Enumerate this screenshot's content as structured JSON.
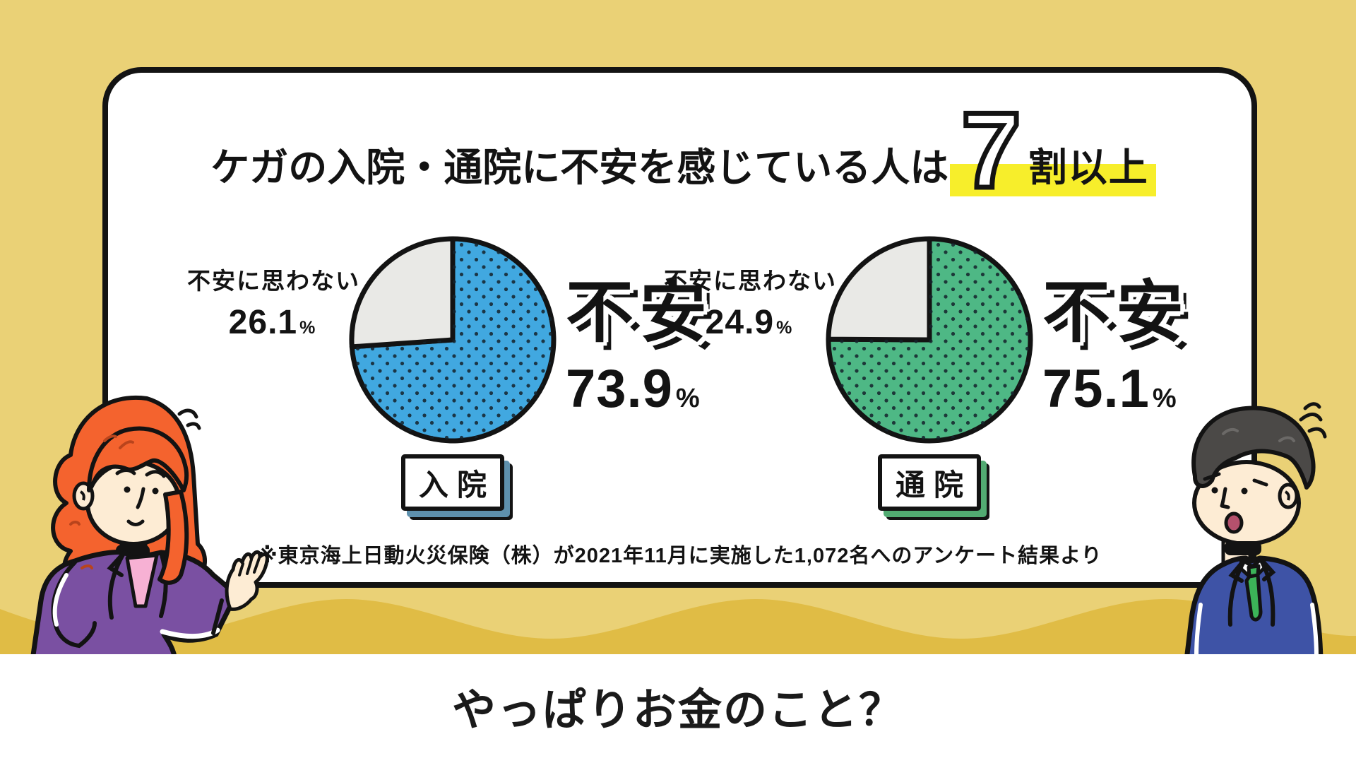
{
  "header": {
    "title_prefix": "ケガの入院・通院に不安を感じている人は",
    "big_number": "7",
    "title_suffix": "割以上",
    "highlight_color": "#f7ee2b"
  },
  "charts": [
    {
      "category": "入院",
      "anxious_label": "不安",
      "anxious_value": "73.9",
      "not_anxious_label": "不安に思わない",
      "not_anxious_value": "26.1",
      "unit": "%",
      "color": "#41a8e0",
      "shadow_color": "#5e90ad"
    },
    {
      "category": "通院",
      "anxious_label": "不安",
      "anxious_value": "75.1",
      "not_anxious_label": "不安に思わない",
      "not_anxious_value": "24.9",
      "unit": "%",
      "color": "#4eb885",
      "shadow_color": "#52ab72"
    }
  ],
  "footnote": "※東京海上日動火災保険（株）が2021年11月に実施した1,072名へのアンケート結果より",
  "bottom_question": "やっぱりお金のこと？",
  "palette": {
    "background": "#ead176",
    "wave": "#e0bc45",
    "card_border": "#131313",
    "gray_slice": "#e9e9e6",
    "dot_color": "#14222b"
  },
  "chart_data": [
    {
      "type": "pie",
      "title": "入院",
      "labels": [
        "不安",
        "不安に思わない"
      ],
      "values": [
        73.9,
        26.1
      ],
      "colors": [
        "#41a8e0",
        "#e9e9e6"
      ],
      "start_angle_deg": 0,
      "direction": "clockwise",
      "legend_position": "none"
    },
    {
      "type": "pie",
      "title": "通院",
      "labels": [
        "不安",
        "不安に思わない"
      ],
      "values": [
        75.1,
        24.9
      ],
      "colors": [
        "#4eb885",
        "#e9e9e6"
      ],
      "start_angle_deg": 0,
      "direction": "clockwise",
      "legend_position": "none"
    }
  ]
}
